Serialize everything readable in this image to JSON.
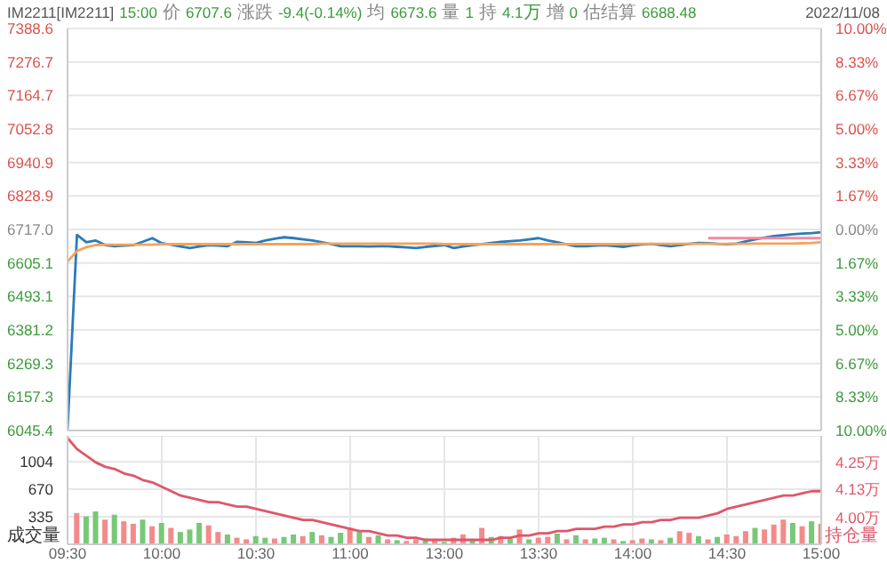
{
  "chart_data": [
    {
      "type": "line",
      "annotations": [
        "IM2211[IM2211]",
        "15:00",
        "价",
        "6707.6",
        "涨跌",
        "-9.4(-0.14%)",
        "均",
        "6673.6",
        "量",
        "1",
        "持",
        "4.1万",
        "增",
        "0",
        "估结算",
        "6688.48",
        "2022/11/08"
      ],
      "categories": [
        null,
        null,
        null,
        null,
        null,
        null,
        null,
        null,
        null,
        null,
        null,
        null,
        null,
        null,
        null,
        null,
        null,
        null,
        null,
        null,
        null,
        null,
        null,
        null,
        null,
        null,
        null,
        null,
        null,
        null,
        null,
        null,
        null,
        null,
        null,
        null,
        null,
        null,
        null,
        null,
        null,
        null,
        null,
        null,
        null,
        null,
        null,
        null,
        null,
        null,
        null,
        null,
        null,
        null,
        null,
        null,
        null,
        null,
        null,
        null,
        null,
        null,
        null,
        null,
        null,
        null,
        null,
        null,
        null,
        null,
        null,
        null,
        null,
        null,
        null,
        null,
        null,
        null,
        null,
        null,
        null
      ],
      "series": [
        {
          "color": "#2b7bb9",
          "values": [
            6050,
            6699,
            6674,
            6680,
            6665,
            6661,
            6663,
            6665,
            6676,
            6688,
            6671,
            6666,
            6660,
            6655,
            6660,
            6665,
            6663,
            6661,
            6676,
            6674,
            6672,
            6680,
            6686,
            6691,
            6688,
            6684,
            6680,
            6674,
            6668,
            6661,
            6661,
            6661,
            6660,
            6661,
            6661,
            6659,
            6657,
            6655,
            6659,
            6662,
            6665,
            6655,
            6660,
            6665,
            6668,
            6672,
            6676,
            6678,
            6680,
            6684,
            6688,
            6680,
            6674,
            6667,
            6661,
            6661,
            6663,
            6665,
            6662,
            6659,
            6664,
            6667,
            6669,
            6665,
            6661,
            6665,
            6669,
            6672,
            6671,
            6669,
            6668,
            6670,
            6677,
            6684,
            6690,
            6695,
            6698,
            6701,
            6703,
            6705,
            6708
          ]
        },
        {
          "color": "#f5a35c",
          "values": [
            6610,
            6645,
            6658,
            6665,
            6666,
            6666,
            6666,
            6666,
            6666,
            6666,
            6668,
            6668,
            6668,
            6668,
            6668,
            6668,
            6668,
            6668,
            6668,
            6668,
            6668,
            6668,
            6668,
            6668,
            6668,
            6668,
            6668,
            6670,
            6670,
            6670,
            6670,
            6670,
            6670,
            6670,
            6670,
            6670,
            6670,
            6670,
            6670,
            6670,
            6668,
            6668,
            6668,
            6668,
            6668,
            6668,
            6668,
            6668,
            6668,
            6668,
            6668,
            6668,
            6668,
            6668,
            6668,
            6668,
            6668,
            6668,
            6668,
            6668,
            6669,
            6669,
            6669,
            6669,
            6669,
            6669,
            6669,
            6669,
            6669,
            6669,
            6669,
            6669,
            6669,
            6670,
            6670,
            6670,
            6670,
            6670,
            6671,
            6672,
            6674
          ]
        },
        {
          "color": "#f08aa0",
          "values": [
            null,
            null,
            null,
            null,
            null,
            null,
            null,
            null,
            null,
            null,
            null,
            null,
            null,
            null,
            null,
            null,
            null,
            null,
            null,
            null,
            null,
            null,
            null,
            null,
            null,
            null,
            null,
            null,
            null,
            null,
            null,
            null,
            null,
            null,
            null,
            null,
            null,
            null,
            null,
            null,
            null,
            null,
            null,
            null,
            null,
            null,
            null,
            null,
            null,
            null,
            null,
            null,
            null,
            null,
            null,
            null,
            null,
            null,
            null,
            null,
            null,
            null,
            null,
            null,
            null,
            null,
            null,
            null,
            6688,
            6688,
            6688,
            6688,
            6688,
            6688,
            6688,
            6688,
            6688,
            6688,
            6688,
            6688,
            6688
          ]
        }
      ],
      "ylim": [
        6045.4,
        7388.6
      ],
      "yticks": [
        7388.6,
        7276.7,
        7164.7,
        7052.8,
        6940.9,
        6828.9,
        {
          "value": 6717,
          "label": "6717.0"
        },
        6605.1,
        6493.1,
        6381.2,
        6269.3,
        6157.3,
        6045.4
      ],
      "y2lim": [
        -10,
        10
      ],
      "y2ticks": [
        {
          "value": 10,
          "label": "10.00%"
        },
        {
          "value": 8.33,
          "label": "8.33%"
        },
        {
          "value": 6.67,
          "label": "6.67%"
        },
        {
          "value": 5,
          "label": "5.00%"
        },
        {
          "value": 3.33,
          "label": "3.33%"
        },
        {
          "value": 1.67,
          "label": "1.67%"
        },
        {
          "value": 0,
          "label": "0.00%"
        },
        {
          "value": -1.67,
          "label": "1.67%"
        },
        {
          "value": -3.33,
          "label": "3.33%"
        },
        {
          "value": -5,
          "label": "5.00%"
        },
        {
          "value": -6.67,
          "label": "6.67%"
        },
        {
          "value": -8.33,
          "label": "8.33%"
        },
        {
          "value": -10,
          "label": "10.00%"
        }
      ],
      "tick_labels": "y",
      "grid": true
    },
    {
      "type": "bar",
      "ylabel": "成交量",
      "y2label": "持仓量",
      "categories": [
        "09:30",
        null,
        null,
        null,
        null,
        null,
        null,
        null,
        null,
        null,
        "10:00",
        null,
        null,
        null,
        null,
        null,
        null,
        null,
        null,
        null,
        "10:30",
        null,
        null,
        null,
        null,
        null,
        null,
        null,
        null,
        null,
        "11:00",
        null,
        null,
        null,
        null,
        null,
        null,
        null,
        null,
        null,
        "13:00",
        null,
        null,
        null,
        null,
        null,
        null,
        null,
        null,
        null,
        "13:30",
        null,
        null,
        null,
        null,
        null,
        null,
        null,
        null,
        null,
        "14:00",
        null,
        null,
        null,
        null,
        null,
        null,
        null,
        null,
        null,
        "14:30",
        null,
        null,
        null,
        null,
        null,
        null,
        null,
        null,
        null,
        "15:00"
      ],
      "series": [
        {
          "values": [
            null,
            380,
            340,
            400,
            300,
            360,
            280,
            250,
            300,
            220,
            260,
            200,
            150,
            180,
            260,
            230,
            150,
            120,
            80,
            60,
            100,
            80,
            70,
            90,
            120,
            100,
            150,
            110,
            90,
            140,
            200,
            150,
            90,
            110,
            60,
            50,
            40,
            60,
            70,
            50,
            30,
            80,
            120,
            60,
            200,
            90,
            100,
            70,
            180,
            60,
            80,
            90,
            130,
            60,
            110,
            60,
            70,
            80,
            60,
            40,
            50,
            70,
            60,
            50,
            80,
            160,
            140,
            100,
            60,
            90,
            120,
            100,
            160,
            200,
            180,
            240,
            300,
            260,
            220,
            280,
            250
          ],
          "colors": [
            null,
            "#f28b8b",
            "#78c878",
            "#78c878",
            "#f28b8b",
            "#78c878",
            "#f28b8b",
            "#f28b8b",
            "#78c878",
            "#f28b8b",
            "#78c878",
            "#f28b8b",
            "#78c878",
            "#78c878",
            "#78c878",
            "#f28b8b",
            "#f28b8b",
            "#78c878",
            "#f28b8b",
            "#f28b8b",
            "#78c878",
            "#78c878",
            "#f28b8b",
            "#78c878",
            "#78c878",
            "#f28b8b",
            "#78c878",
            "#f28b8b",
            "#78c878",
            "#78c878",
            "#f28b8b",
            "#78c878",
            "#f28b8b",
            "#78c878",
            "#f28b8b",
            "#78c878",
            "#f28b8b",
            "#f28b8b",
            "#78c878",
            "#f28b8b",
            "#78c878",
            "#f28b8b",
            "#f28b8b",
            "#78c878",
            "#f28b8b",
            "#78c878",
            "#f28b8b",
            "#78c878",
            "#f28b8b",
            "#78c878",
            "#f28b8b",
            "#f28b8b",
            "#78c878",
            "#f28b8b",
            "#78c878",
            "#f28b8b",
            "#78c878",
            "#78c878",
            "#f28b8b",
            "#78c878",
            "#f28b8b",
            "#f28b8b",
            "#78c878",
            "#f28b8b",
            "#78c878",
            "#f28b8b",
            "#f28b8b",
            "#78c878",
            "#f28b8b",
            "#78c878",
            "#f28b8b",
            "#f28b8b",
            "#f28b8b",
            "#78c878",
            "#f28b8b",
            "#f28b8b",
            "#f28b8b",
            "#78c878",
            "#f28b8b",
            "#78c878",
            "#f28b8b"
          ]
        },
        {
          "type": "line",
          "axis": "y2",
          "color": "#e0566a",
          "values": [
            4.36,
            4.31,
            4.28,
            4.25,
            4.23,
            4.22,
            4.2,
            4.19,
            4.17,
            4.16,
            4.14,
            4.12,
            4.1,
            4.09,
            4.08,
            4.07,
            4.07,
            4.06,
            4.05,
            4.05,
            4.04,
            4.03,
            4.02,
            4.01,
            4.0,
            3.99,
            3.99,
            3.98,
            3.97,
            3.96,
            3.95,
            3.94,
            3.94,
            3.93,
            3.92,
            3.92,
            3.91,
            3.91,
            3.9,
            3.9,
            3.9,
            3.9,
            3.9,
            3.9,
            3.9,
            3.9,
            3.91,
            3.91,
            3.92,
            3.92,
            3.93,
            3.93,
            3.94,
            3.94,
            3.95,
            3.95,
            3.95,
            3.96,
            3.96,
            3.97,
            3.97,
            3.98,
            3.98,
            3.99,
            3.99,
            4.0,
            4.0,
            4.0,
            4.01,
            4.02,
            4.04,
            4.05,
            4.06,
            4.07,
            4.08,
            4.09,
            4.1,
            4.1,
            4.11,
            4.12,
            4.12
          ]
        }
      ],
      "ylim": [
        0,
        1320
      ],
      "yticks": [
        335,
        670,
        1004
      ],
      "y2lim": [
        3.88,
        4.37
      ],
      "y2ticks": [
        {
          "value": 4,
          "label": "4.00万"
        },
        {
          "value": 4.13,
          "label": "4.13万"
        },
        {
          "value": 4.25,
          "label": "4.25万"
        }
      ],
      "grid": true
    }
  ]
}
